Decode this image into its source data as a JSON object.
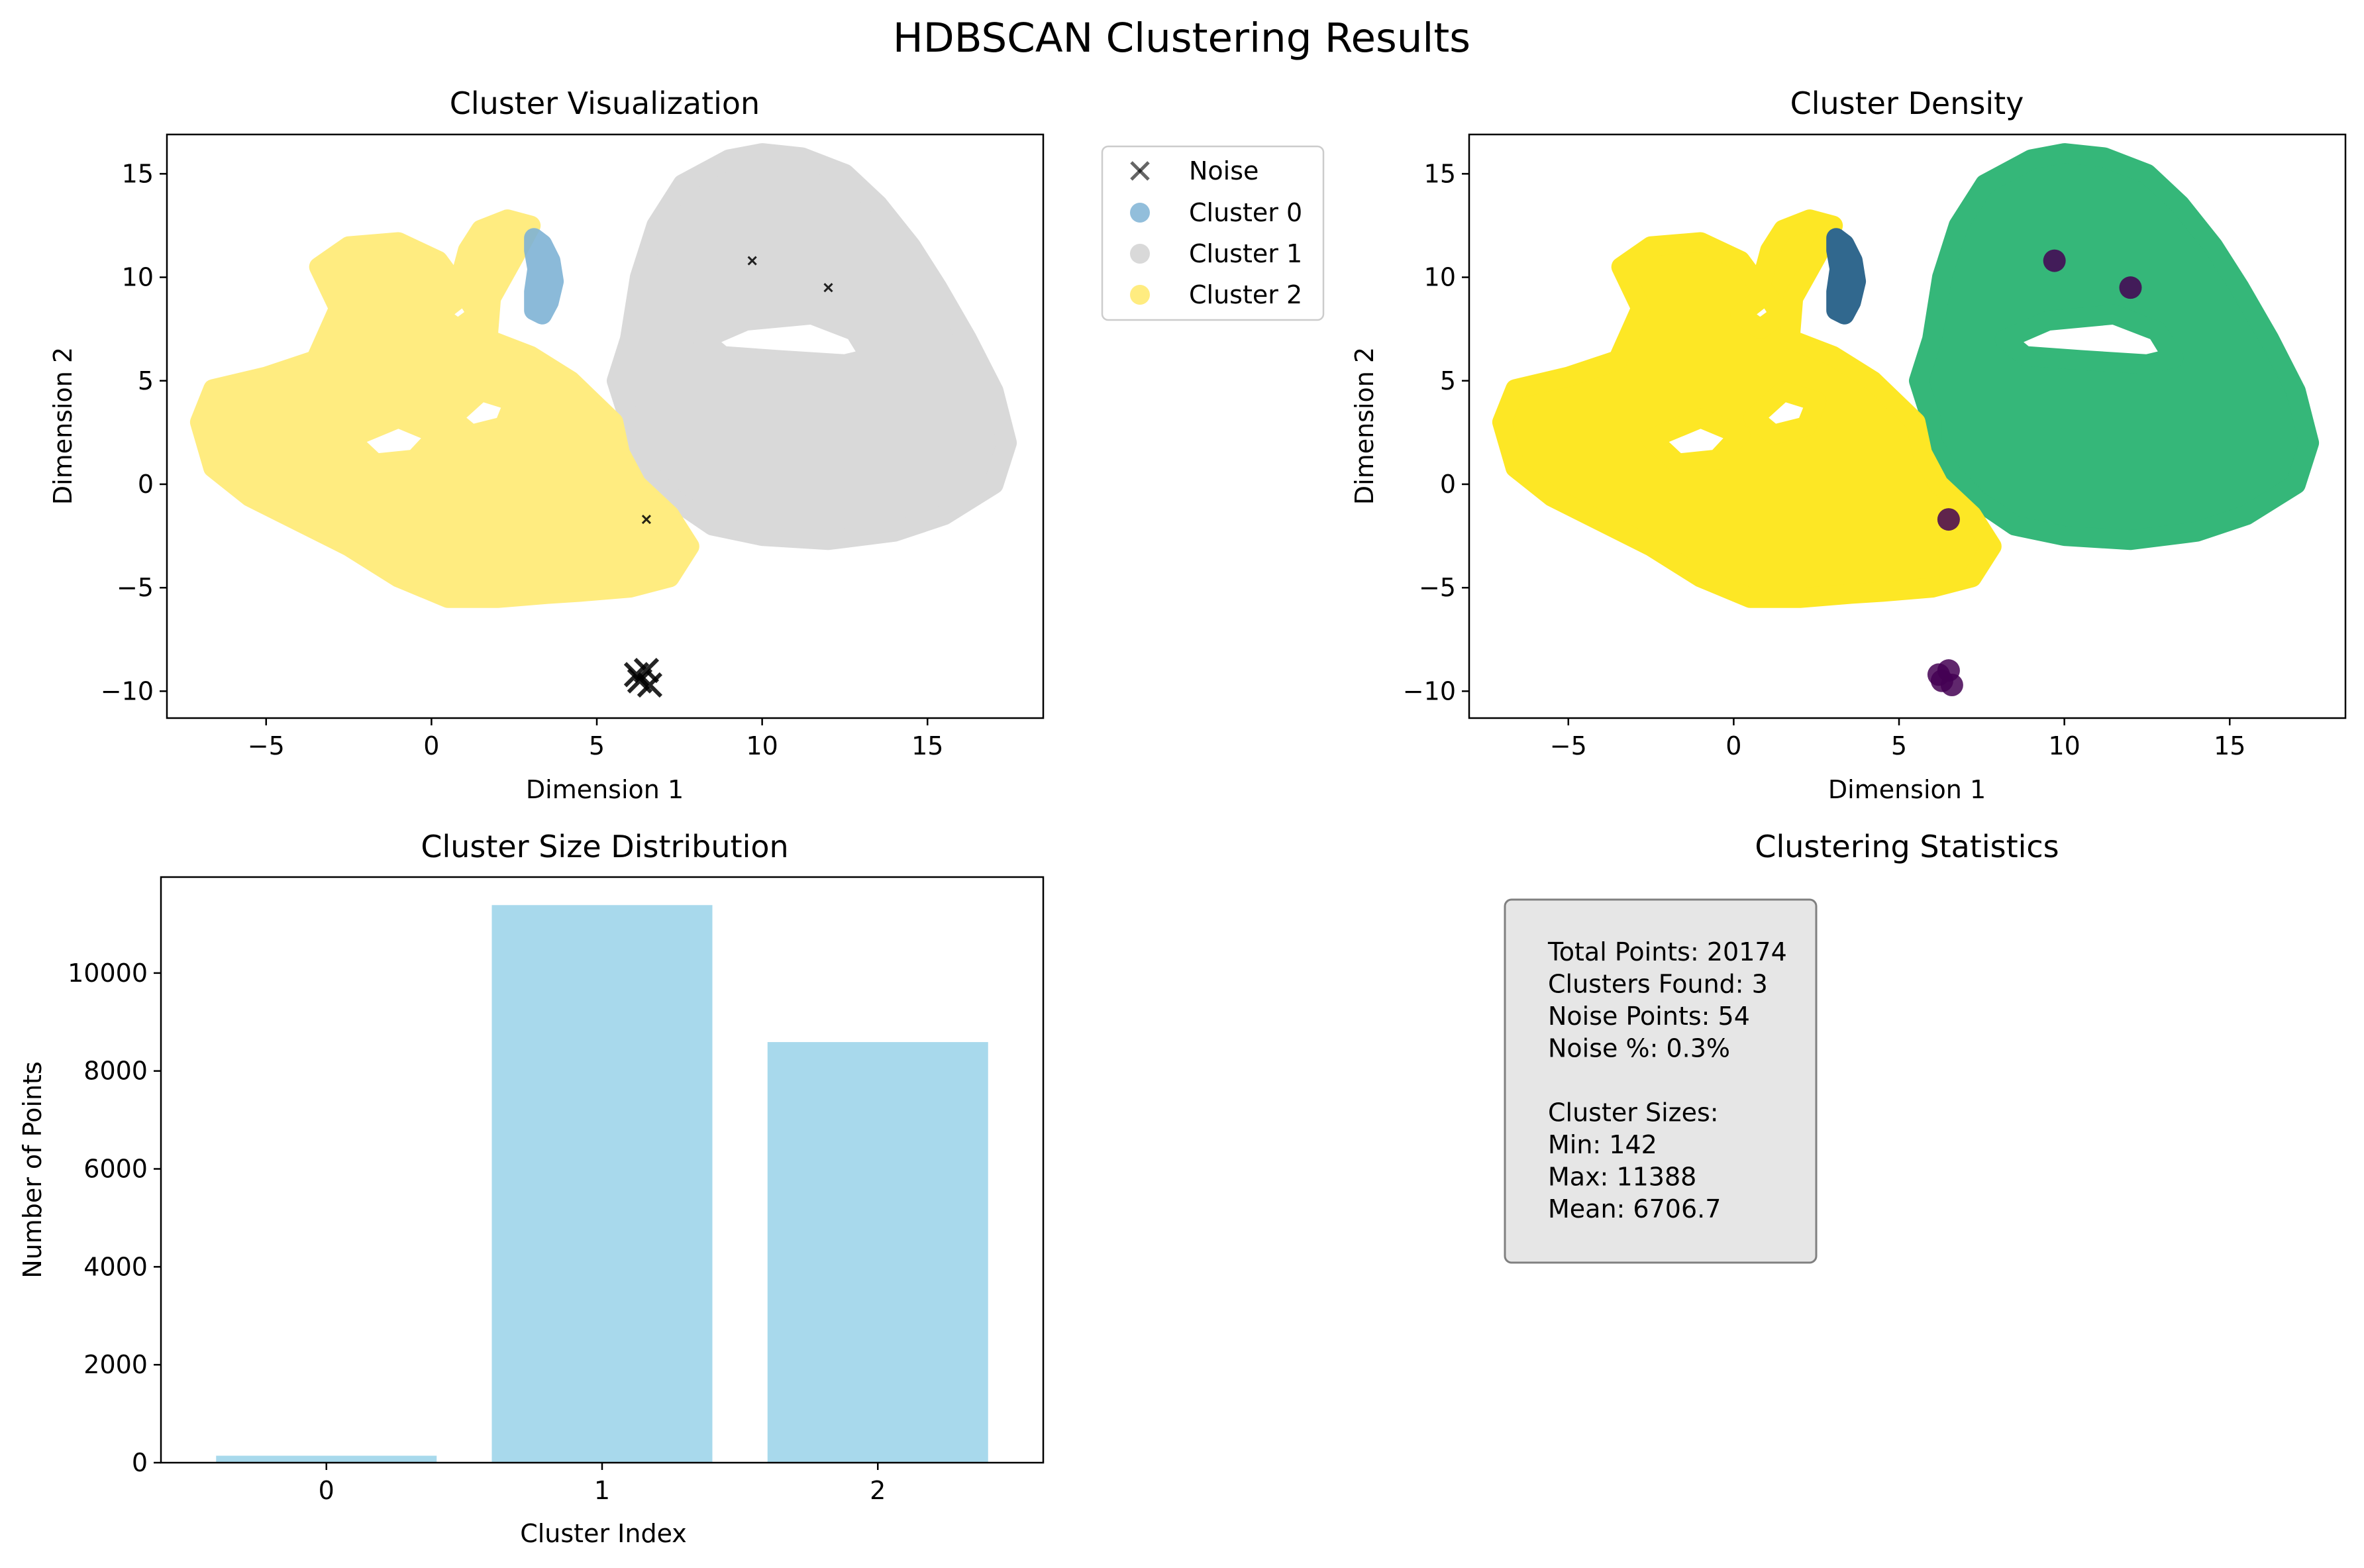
{
  "suptitle": "HDBSCAN Clustering Results",
  "colors": {
    "noise": "#000000",
    "cluster_0": "#7fb3d5",
    "cluster_1": "#d9d9d9",
    "cluster_2": "#ffec80",
    "density_noise": "#440154",
    "density_cluster_0": "#31688e",
    "density_cluster_1": "#35b779",
    "density_cluster_2": "#fde725",
    "bar": "#a8d9ec",
    "stats_box_fill": "#e6e6e6",
    "stats_box_edge": "#808080"
  },
  "chart_data": [
    {
      "type": "scatter",
      "title": "Cluster Visualization",
      "xlabel": "Dimension 1",
      "ylabel": "Dimension 2",
      "xlim": [
        -8.0,
        18.5
      ],
      "ylim": [
        -11.3,
        16.9
      ],
      "xticks": [
        -5,
        0,
        5,
        10,
        15
      ],
      "yticks": [
        -10,
        -5,
        0,
        5,
        10,
        15
      ],
      "xtick_labels": [
        "−5",
        "0",
        "5",
        "10",
        "15"
      ],
      "ytick_labels": [
        "−10",
        "−5",
        "0",
        "5",
        "10",
        "15"
      ],
      "legend_position": "outside upper right",
      "series": [
        {
          "name": "Noise",
          "marker": "x",
          "points": [
            [
              6.2,
              -9.2
            ],
            [
              6.5,
              -9.0
            ],
            [
              6.6,
              -9.7
            ],
            [
              6.3,
              -9.5
            ],
            [
              9.7,
              10.8
            ],
            [
              12.0,
              9.5
            ],
            [
              6.5,
              -1.7
            ]
          ]
        },
        {
          "name": "Cluster 0",
          "marker": "o",
          "region": "hook near x 3–4, y 8–12"
        },
        {
          "name": "Cluster 1",
          "marker": "o",
          "region": "large ring x 5.5–17.5, y -3 to 16"
        },
        {
          "name": "Cluster 2",
          "marker": "o",
          "region": "swirl x -7 to 8, y -6 to 13"
        }
      ]
    },
    {
      "type": "scatter",
      "title": "Cluster Density",
      "xlabel": "Dimension 1",
      "ylabel": "Dimension 2",
      "xlim": [
        -8.0,
        18.5
      ],
      "ylim": [
        -11.3,
        16.9
      ],
      "xticks": [
        -5,
        0,
        5,
        10,
        15
      ],
      "yticks": [
        -10,
        -5,
        0,
        5,
        10,
        15
      ],
      "xtick_labels": [
        "−5",
        "0",
        "5",
        "10",
        "15"
      ],
      "ytick_labels": [
        "−10",
        "−5",
        "0",
        "5",
        "10",
        "15"
      ],
      "colormap": "viridis"
    },
    {
      "type": "bar",
      "title": "Cluster Size Distribution",
      "xlabel": "Cluster Index",
      "ylabel": "Number of Points",
      "categories": [
        "0",
        "1",
        "2"
      ],
      "values": [
        142,
        11388,
        8590
      ],
      "ylim": [
        0,
        11960
      ],
      "yticks": [
        0,
        2000,
        4000,
        6000,
        8000,
        10000
      ],
      "ytick_labels": [
        "0",
        "2000",
        "4000",
        "6000",
        "8000",
        "10000"
      ]
    }
  ],
  "stats": {
    "title": "Clustering Statistics",
    "lines": [
      "Total Points: 20174",
      "Clusters Found: 3",
      "Noise Points: 54",
      "Noise %: 0.3%",
      "",
      "Cluster Sizes:",
      "Min: 142",
      "Max: 11388",
      "Mean: 6706.7"
    ]
  }
}
